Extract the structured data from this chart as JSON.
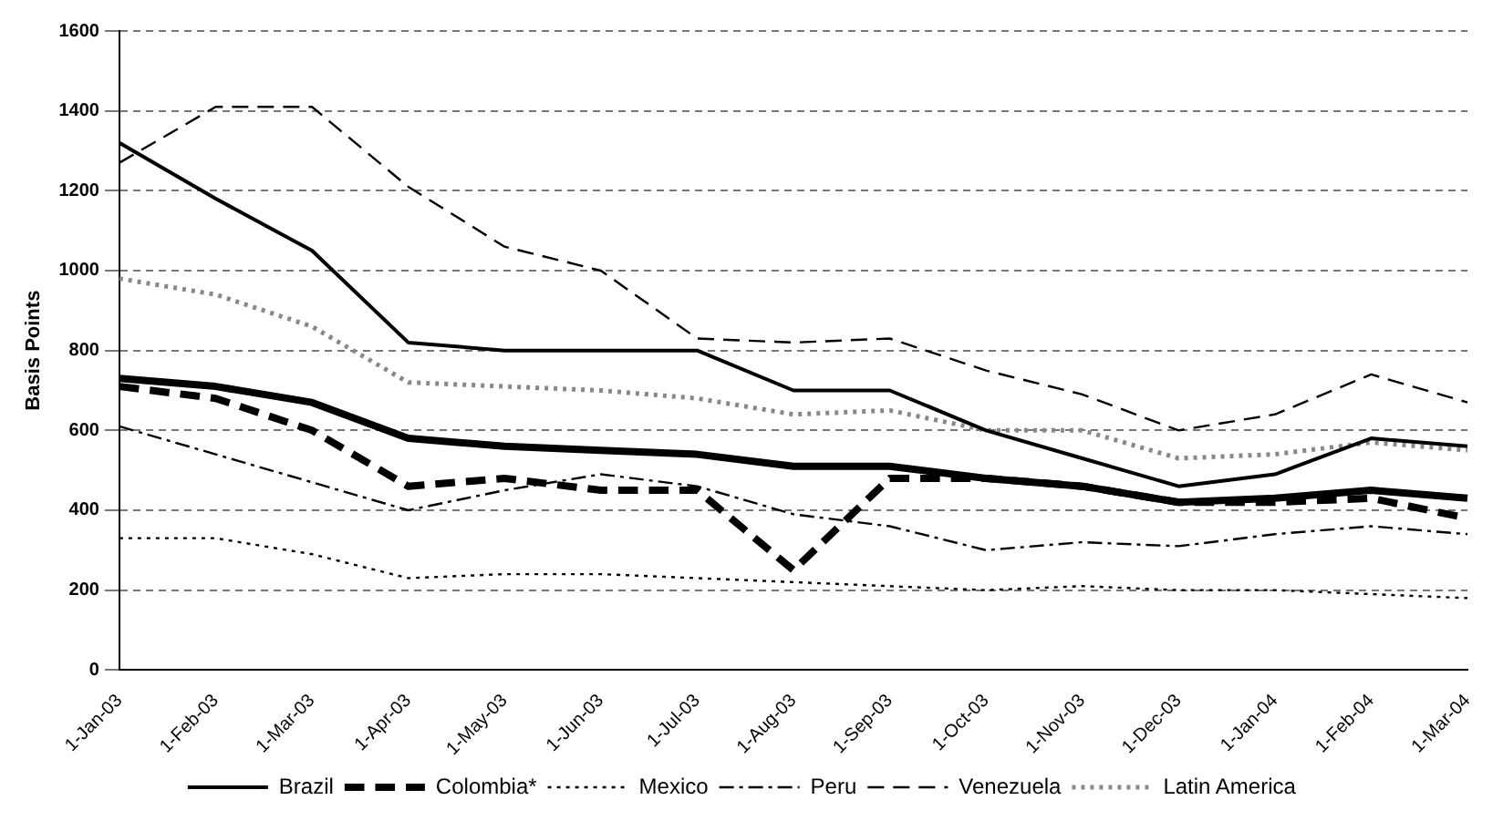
{
  "chart_data": {
    "type": "line",
    "ylabel": "Basis Points",
    "categories": [
      "1-Jan-03",
      "1-Feb-03",
      "1-Mar-03",
      "1-Apr-03",
      "1-May-03",
      "1-Jun-03",
      "1-Jul-03",
      "1-Aug-03",
      "1-Sep-03",
      "1-Oct-03",
      "1-Nov-03",
      "1-Dec-03",
      "1-Jan-04",
      "1-Feb-04",
      "1-Mar-04"
    ],
    "ylim": [
      0,
      1600
    ],
    "yticks": [
      0,
      200,
      400,
      600,
      800,
      1000,
      1200,
      1400,
      1600
    ],
    "grid": "y",
    "legend": "bottom",
    "marker": "none",
    "series": [
      {
        "color": "#000000",
        "line_style": "solid",
        "values": [
          730,
          710,
          670,
          580,
          560,
          550,
          540,
          510,
          510,
          480,
          460,
          420,
          430,
          450,
          430
        ]
      },
      {
        "name": "Brazil",
        "color": "#000000",
        "line_style": "solid",
        "values": [
          1320,
          1180,
          1050,
          820,
          800,
          800,
          800,
          700,
          700,
          600,
          530,
          460,
          490,
          580,
          560
        ]
      },
      {
        "name": "Colombia*",
        "color": "#000000",
        "line_style": "dashed",
        "values": [
          710,
          680,
          600,
          460,
          480,
          450,
          450,
          250,
          480,
          480,
          460,
          420,
          420,
          430,
          380
        ]
      },
      {
        "name": "Mexico",
        "color": "#000000",
        "line_style": "dotted",
        "values": [
          330,
          330,
          290,
          230,
          240,
          240,
          230,
          220,
          210,
          200,
          210,
          200,
          200,
          190,
          180
        ]
      },
      {
        "name": "Peru",
        "color": "#000000",
        "line_style": "dashdot",
        "values": [
          610,
          540,
          470,
          400,
          450,
          490,
          460,
          390,
          360,
          300,
          320,
          310,
          340,
          360,
          340
        ]
      },
      {
        "name": "Venezuela",
        "color": "#000000",
        "line_style": "dashed",
        "values": [
          1270,
          1410,
          1410,
          1210,
          1060,
          1000,
          830,
          820,
          830,
          750,
          690,
          600,
          640,
          740,
          670
        ]
      },
      {
        "name": "Latin America",
        "color": "#888888",
        "line_style": "dotted",
        "values": [
          980,
          940,
          860,
          720,
          710,
          700,
          680,
          640,
          650,
          600,
          600,
          530,
          540,
          570,
          550
        ]
      }
    ]
  }
}
